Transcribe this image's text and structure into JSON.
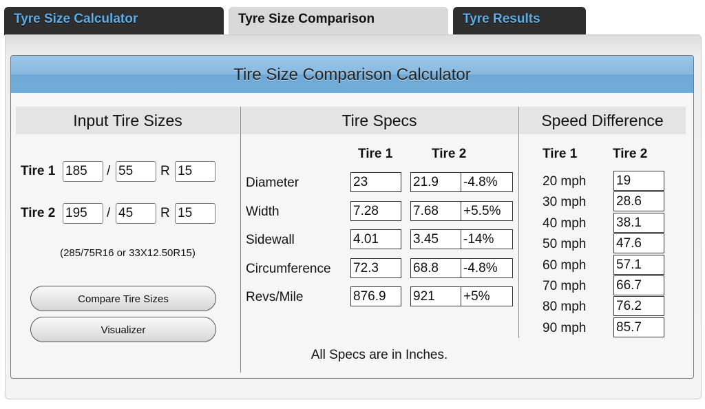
{
  "tabs": [
    {
      "label": "Tyre Size Calculator"
    },
    {
      "label": "Tyre Size Comparison"
    },
    {
      "label": "Tyre Results"
    }
  ],
  "title": "Tire Size Comparison Calculator",
  "input": {
    "heading": "Input Tire Sizes",
    "tire1": {
      "label": "Tire 1",
      "width": "185",
      "aspect": "55",
      "rim": "15"
    },
    "tire2": {
      "label": "Tire 2",
      "width": "195",
      "aspect": "45",
      "rim": "15"
    },
    "slash": "/",
    "r": "R",
    "hint": "(285/75R16 or 33X12.50R15)",
    "compare_label": "Compare Tire Sizes",
    "visualizer_label": "Visualizer"
  },
  "specs": {
    "heading": "Tire Specs",
    "col1": "Tire 1",
    "col2": "Tire 2",
    "rows": [
      {
        "label": "Diameter",
        "t1": "23",
        "t2": "21.9",
        "diff": "-4.8%"
      },
      {
        "label": "Width",
        "t1": "7.28",
        "t2": "7.68",
        "diff": "+5.5%"
      },
      {
        "label": "Sidewall",
        "t1": "4.01",
        "t2": "3.45",
        "diff": "-14%"
      },
      {
        "label": "Circumference",
        "t1": "72.3",
        "t2": "68.8",
        "diff": "-4.8%"
      },
      {
        "label": "Revs/Mile",
        "t1": "876.9",
        "t2": "921",
        "diff": "+5%"
      }
    ],
    "note": "All Specs are in Inches."
  },
  "speed": {
    "heading": "Speed Difference",
    "col1": "Tire 1",
    "col2": "Tire 2",
    "rows": [
      {
        "t1": "20 mph",
        "t2": "19"
      },
      {
        "t1": "30 mph",
        "t2": "28.6"
      },
      {
        "t1": "40 mph",
        "t2": "38.1"
      },
      {
        "t1": "50 mph",
        "t2": "47.6"
      },
      {
        "t1": "60 mph",
        "t2": "57.1"
      },
      {
        "t1": "70 mph",
        "t2": "66.7"
      },
      {
        "t1": "80 mph",
        "t2": "76.2"
      },
      {
        "t1": "90 mph",
        "t2": "85.7"
      }
    ]
  }
}
